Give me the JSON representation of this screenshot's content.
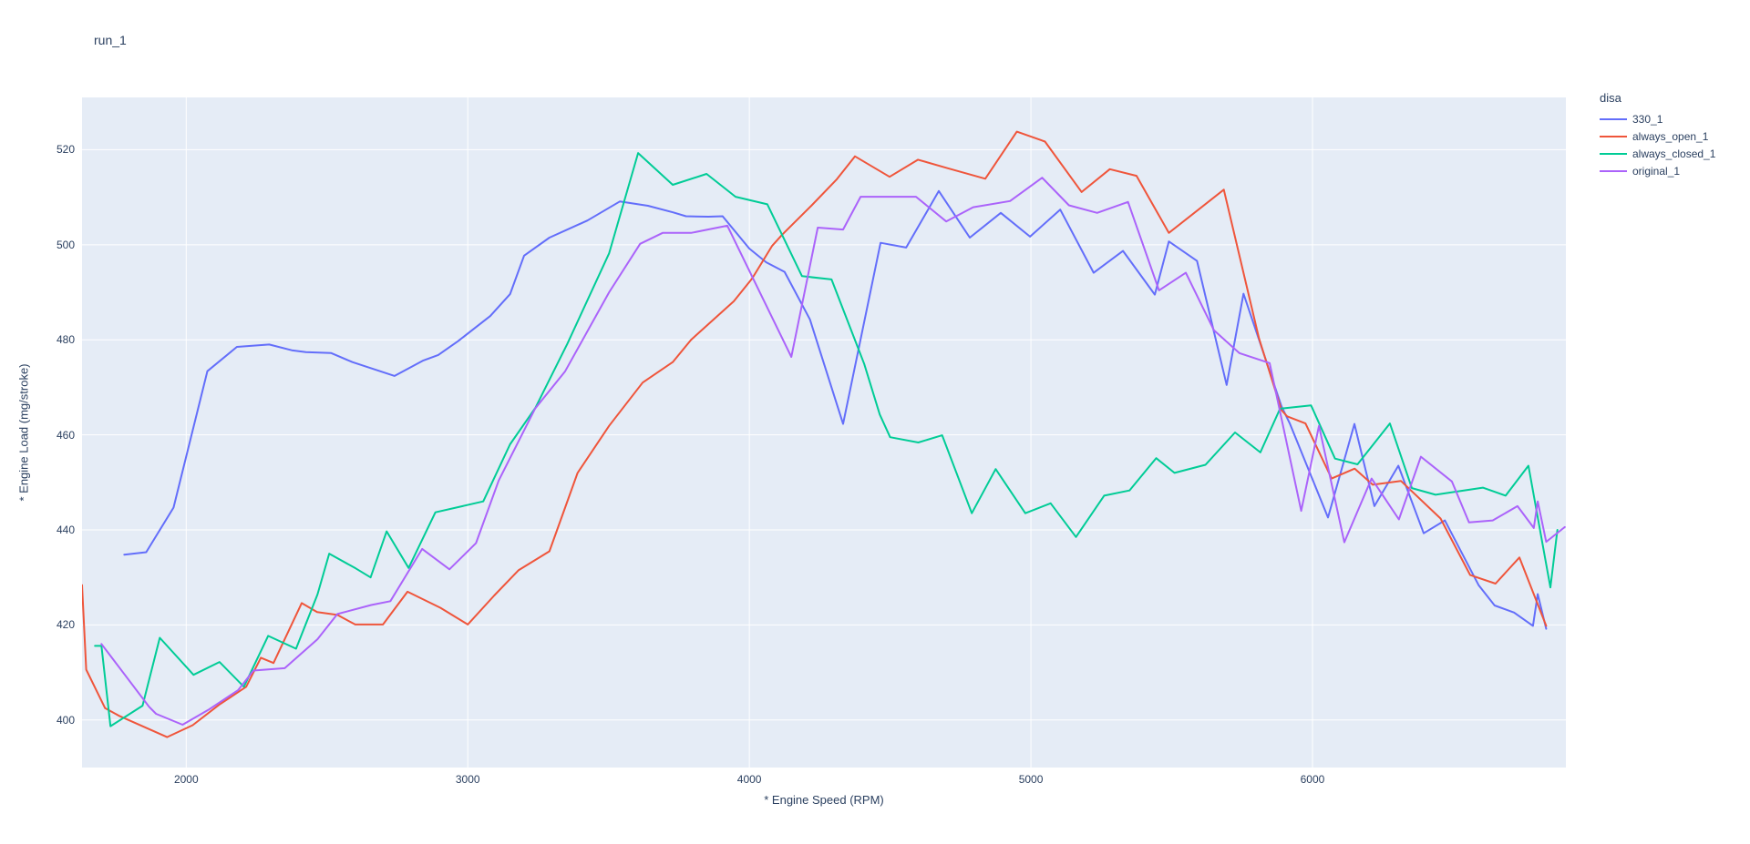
{
  "title": "run_1",
  "chart_data": {
    "type": "line",
    "title": "run_1",
    "xlabel": "* Engine Speed (RPM)",
    "ylabel": "* Engine Load (mg/stroke)",
    "xlim": [
      1630,
      6900
    ],
    "ylim": [
      390,
      531
    ],
    "xticks": [
      2000,
      3000,
      4000,
      5000,
      6000
    ],
    "yticks": [
      400,
      420,
      440,
      460,
      480,
      500,
      520
    ],
    "grid": true,
    "plot_bg_color": "#E5ECF6",
    "grid_color": "#FFFFFF",
    "text_color": "#2a3f5f",
    "legend": {
      "title": "disa",
      "position": "right"
    },
    "series": [
      {
        "name": "330_1",
        "color": "#636EFA",
        "points": [
          [
            1780,
            434.8
          ],
          [
            1858,
            435.3
          ],
          [
            1955,
            444.7
          ],
          [
            2075,
            473.4
          ],
          [
            2180,
            478.5
          ],
          [
            2295,
            479.0
          ],
          [
            2375,
            477.8
          ],
          [
            2425,
            477.4
          ],
          [
            2515,
            477.2
          ],
          [
            2590,
            475.3
          ],
          [
            2740,
            472.4
          ],
          [
            2840,
            475.6
          ],
          [
            2895,
            476.8
          ],
          [
            2965,
            479.7
          ],
          [
            3080,
            485.0
          ],
          [
            3150,
            489.6
          ],
          [
            3200,
            497.7
          ],
          [
            3290,
            501.5
          ],
          [
            3425,
            505.1
          ],
          [
            3540,
            509.1
          ],
          [
            3640,
            508.2
          ],
          [
            3730,
            506.8
          ],
          [
            3775,
            506.0
          ],
          [
            3855,
            505.9
          ],
          [
            3905,
            506.0
          ],
          [
            4000,
            499.2
          ],
          [
            4060,
            496.3
          ],
          [
            4125,
            494.3
          ],
          [
            4215,
            484.3
          ],
          [
            4333,
            462.3
          ],
          [
            4466,
            500.4
          ],
          [
            4557,
            499.4
          ],
          [
            4673,
            511.3
          ],
          [
            4783,
            501.5
          ],
          [
            4893,
            506.7
          ],
          [
            4997,
            501.7
          ],
          [
            5104,
            507.4
          ],
          [
            5223,
            494.1
          ],
          [
            5327,
            498.7
          ],
          [
            5440,
            489.5
          ],
          [
            5490,
            500.7
          ],
          [
            5590,
            496.6
          ],
          [
            5695,
            470.5
          ],
          [
            5755,
            489.7
          ],
          [
            5890,
            466.0
          ],
          [
            5920,
            462.3
          ],
          [
            6055,
            442.6
          ],
          [
            6149,
            462.3
          ],
          [
            6220,
            445.0
          ],
          [
            6305,
            453.5
          ],
          [
            6395,
            439.3
          ],
          [
            6470,
            442.0
          ],
          [
            6590,
            428.4
          ],
          [
            6647,
            424.1
          ],
          [
            6716,
            422.6
          ],
          [
            6783,
            419.8
          ],
          [
            6800,
            426.5
          ],
          [
            6830,
            419.2
          ]
        ]
      },
      {
        "name": "always_open_1",
        "color": "#EF553B",
        "points": [
          [
            1630,
            428.4
          ],
          [
            1645,
            410.6
          ],
          [
            1712,
            402.5
          ],
          [
            1764,
            400.8
          ],
          [
            1932,
            396.4
          ],
          [
            2023,
            398.9
          ],
          [
            2117,
            403.2
          ],
          [
            2213,
            407.0
          ],
          [
            2265,
            413.1
          ],
          [
            2310,
            412.0
          ],
          [
            2410,
            424.6
          ],
          [
            2465,
            422.7
          ],
          [
            2537,
            422.1
          ],
          [
            2600,
            420.1
          ],
          [
            2699,
            420.1
          ],
          [
            2786,
            427.0
          ],
          [
            2903,
            423.6
          ],
          [
            3000,
            420.1
          ],
          [
            3094,
            426.2
          ],
          [
            3180,
            431.5
          ],
          [
            3290,
            435.5
          ],
          [
            3390,
            452.0
          ],
          [
            3502,
            461.9
          ],
          [
            3621,
            471.0
          ],
          [
            3728,
            475.3
          ],
          [
            3793,
            480.0
          ],
          [
            3945,
            488.1
          ],
          [
            4010,
            492.9
          ],
          [
            4081,
            499.8
          ],
          [
            4116,
            502.1
          ],
          [
            4220,
            508.2
          ],
          [
            4311,
            513.8
          ],
          [
            4375,
            518.6
          ],
          [
            4498,
            514.3
          ],
          [
            4599,
            517.9
          ],
          [
            4705,
            516.1
          ],
          [
            4838,
            513.9
          ],
          [
            4950,
            523.8
          ],
          [
            5050,
            521.7
          ],
          [
            5180,
            511.1
          ],
          [
            5280,
            515.9
          ],
          [
            5375,
            514.5
          ],
          [
            5490,
            502.5
          ],
          [
            5685,
            511.6
          ],
          [
            5810,
            480.3
          ],
          [
            5890,
            465.2
          ],
          [
            5910,
            463.9
          ],
          [
            5975,
            462.4
          ],
          [
            6068,
            450.8
          ],
          [
            6150,
            452.9
          ],
          [
            6214,
            449.5
          ],
          [
            6314,
            450.3
          ],
          [
            6455,
            442.4
          ],
          [
            6560,
            430.5
          ],
          [
            6650,
            428.7
          ],
          [
            6735,
            434.2
          ],
          [
            6830,
            419.8
          ]
        ]
      },
      {
        "name": "always_closed_1",
        "color": "#00CC96",
        "points": [
          [
            1676,
            415.6
          ],
          [
            1699,
            415.6
          ],
          [
            1731,
            398.7
          ],
          [
            1845,
            403.0
          ],
          [
            1906,
            417.3
          ],
          [
            2026,
            409.5
          ],
          [
            2118,
            412.2
          ],
          [
            2205,
            407.0
          ],
          [
            2291,
            417.7
          ],
          [
            2390,
            415.0
          ],
          [
            2466,
            426.4
          ],
          [
            2508,
            435.0
          ],
          [
            2602,
            431.9
          ],
          [
            2655,
            430.0
          ],
          [
            2712,
            439.7
          ],
          [
            2790,
            432.0
          ],
          [
            2885,
            443.7
          ],
          [
            3055,
            446.0
          ],
          [
            3150,
            458.0
          ],
          [
            3240,
            465.7
          ],
          [
            3353,
            479.1
          ],
          [
            3502,
            498.2
          ],
          [
            3605,
            519.3
          ],
          [
            3728,
            512.6
          ],
          [
            3848,
            514.9
          ],
          [
            3951,
            510.1
          ],
          [
            4064,
            508.5
          ],
          [
            4187,
            493.4
          ],
          [
            4292,
            492.7
          ],
          [
            4408,
            474.9
          ],
          [
            4463,
            464.3
          ],
          [
            4500,
            459.5
          ],
          [
            4600,
            458.4
          ],
          [
            4685,
            459.9
          ],
          [
            4790,
            443.5
          ],
          [
            4875,
            452.8
          ],
          [
            4980,
            443.5
          ],
          [
            5070,
            445.6
          ],
          [
            5160,
            438.5
          ],
          [
            5260,
            447.2
          ],
          [
            5350,
            448.3
          ],
          [
            5445,
            455.1
          ],
          [
            5510,
            452.0
          ],
          [
            5620,
            453.7
          ],
          [
            5725,
            460.5
          ],
          [
            5815,
            456.3
          ],
          [
            5885,
            465.5
          ],
          [
            5995,
            466.2
          ],
          [
            6080,
            455.0
          ],
          [
            6160,
            453.8
          ],
          [
            6275,
            462.4
          ],
          [
            6353,
            448.8
          ],
          [
            6437,
            447.4
          ],
          [
            6605,
            448.9
          ],
          [
            6686,
            447.2
          ],
          [
            6767,
            453.5
          ],
          [
            6845,
            427.9
          ],
          [
            6870,
            440.0
          ]
        ]
      },
      {
        "name": "original_1",
        "color": "#AB63FA",
        "points": [
          [
            1699,
            416.0
          ],
          [
            1868,
            402.8
          ],
          [
            1893,
            401.3
          ],
          [
            1987,
            399.0
          ],
          [
            2078,
            402.1
          ],
          [
            2185,
            406.3
          ],
          [
            2239,
            410.4
          ],
          [
            2350,
            410.9
          ],
          [
            2466,
            417.0
          ],
          [
            2537,
            422.3
          ],
          [
            2657,
            424.2
          ],
          [
            2725,
            425.0
          ],
          [
            2838,
            436.0
          ],
          [
            2935,
            431.7
          ],
          [
            3029,
            437.2
          ],
          [
            3110,
            450.4
          ],
          [
            3239,
            465.5
          ],
          [
            3346,
            473.4
          ],
          [
            3502,
            490.0
          ],
          [
            3612,
            500.2
          ],
          [
            3692,
            502.5
          ],
          [
            3793,
            502.5
          ],
          [
            3922,
            504.0
          ],
          [
            4149,
            476.4
          ],
          [
            4243,
            503.6
          ],
          [
            4333,
            503.2
          ],
          [
            4395,
            510.1
          ],
          [
            4592,
            510.1
          ],
          [
            4699,
            504.9
          ],
          [
            4795,
            507.9
          ],
          [
            4926,
            509.2
          ],
          [
            5040,
            514.1
          ],
          [
            5135,
            508.3
          ],
          [
            5235,
            506.7
          ],
          [
            5345,
            509.0
          ],
          [
            5455,
            490.4
          ],
          [
            5550,
            494.1
          ],
          [
            5650,
            482.0
          ],
          [
            5740,
            477.2
          ],
          [
            5848,
            475.1
          ],
          [
            5960,
            444.0
          ],
          [
            6023,
            461.9
          ],
          [
            6113,
            437.4
          ],
          [
            6210,
            450.8
          ],
          [
            6307,
            442.2
          ],
          [
            6385,
            455.4
          ],
          [
            6495,
            450.2
          ],
          [
            6556,
            441.6
          ],
          [
            6640,
            442.0
          ],
          [
            6728,
            445.0
          ],
          [
            6786,
            440.4
          ],
          [
            6800,
            446.0
          ],
          [
            6830,
            437.5
          ],
          [
            6896,
            440.6
          ]
        ]
      }
    ]
  }
}
